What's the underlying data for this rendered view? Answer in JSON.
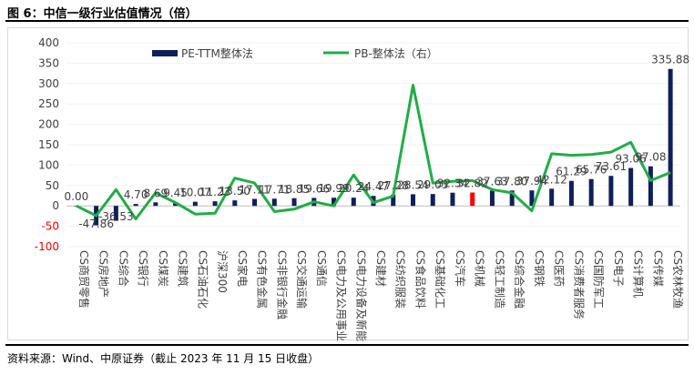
{
  "figure": {
    "title": "图 6：中信一级行业估值情况（倍）",
    "source": "资料来源：Wind、中原证券（截止 2023 年 11 月 15 日收盘）"
  },
  "colors": {
    "bar": "#0f1f5c",
    "highlight_bar": "#ff0000",
    "line": "#1fae45",
    "axis_text": "#404040",
    "negative_tick": "#ff0000"
  },
  "chart_data": {
    "type": "bar",
    "categories": [
      "CS商贸零售",
      "CS房地产",
      "CS综合",
      "CS银行",
      "CS煤炭",
      "CS建筑",
      "CS石油石化",
      "沪深300",
      "CS家电",
      "CS有色金属",
      "CS非银行金融",
      "CS交通运输",
      "CS通信",
      "CS电力及公用事业",
      "CS电力设备及新能源",
      "CS建材",
      "CS纺织服装",
      "CS食品饮料",
      "CS基础化工",
      "CS汽车",
      "CS机械",
      "CS轻工制造",
      "CS综合金融",
      "CS钢铁",
      "CS医药",
      "CS消费者服务",
      "CS国防军工",
      "CS电子",
      "CS计算机",
      "CS传媒",
      "CS农林牧渔"
    ],
    "series": [
      {
        "name": "PE-TTM整体法",
        "axis": "left",
        "values": [
          0.0,
          -47.86,
          -36.53,
          4.7,
          8.69,
          9.45,
          10.07,
          11.23,
          13.5,
          17.11,
          17.71,
          18.85,
          19.66,
          19.99,
          20.24,
          24.47,
          27.28,
          28.54,
          29.03,
          32.34,
          32.82,
          37.63,
          37.8,
          37.94,
          42.12,
          61.29,
          65.76,
          73.61,
          93.06,
          97.08,
          335.88
        ],
        "labels": [
          "0.00",
          "-47.86",
          "-36.53",
          "4.70",
          "8.69",
          "9.45",
          "10.07",
          "11.23",
          "13.50",
          "17.11",
          "17.71",
          "18.85",
          "19.66",
          "19.99",
          "20.24",
          "24.47",
          "27.28",
          "28.54",
          "29.03",
          "32.34",
          "32.82",
          "37.63",
          "37.80",
          "37.94",
          "42.12",
          "61.29",
          "65.76",
          "73.61",
          "93.06",
          "97.08",
          "335.88"
        ],
        "highlight_category": "CS机械"
      },
      {
        "name": "PB-整体法（右）",
        "axis": "right",
        "values": [
          0.0,
          -0.6,
          1.0,
          -0.8,
          0.8,
          0.2,
          -0.5,
          -0.45,
          1.7,
          1.4,
          -0.35,
          -0.2,
          0.25,
          0.0,
          1.9,
          0.2,
          0.6,
          7.4,
          1.4,
          1.5,
          1.55,
          1.0,
          0.8,
          -0.3,
          3.2,
          3.1,
          3.15,
          3.3,
          3.9,
          1.55,
          2.05
        ]
      }
    ],
    "yaxis_left": {
      "min": -100,
      "max": 400,
      "step": 50,
      "ticks": [
        "400",
        "350",
        "300",
        "250",
        "200",
        "150",
        "100",
        "50",
        "0",
        "-50",
        "-100"
      ]
    },
    "yaxis_right": {
      "min": -2.5,
      "max": 10
    },
    "legend": {
      "position": "top",
      "entries": [
        "PE-TTM整体法",
        "PB-整体法（右）"
      ]
    }
  }
}
